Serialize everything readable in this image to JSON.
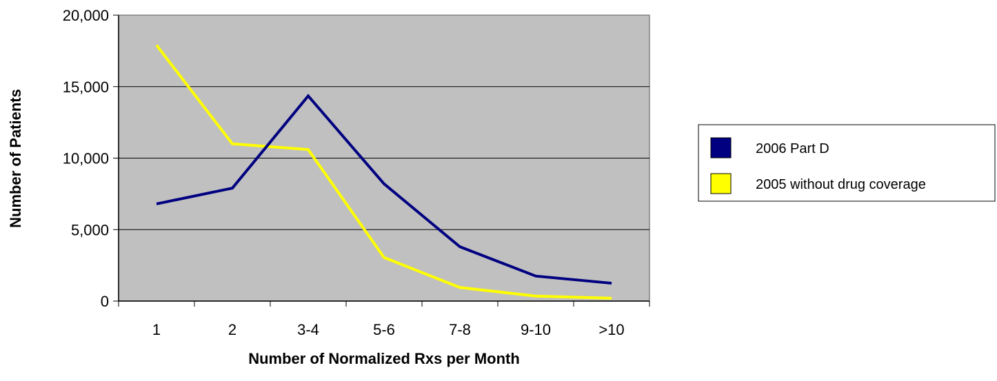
{
  "chart_data": {
    "type": "line",
    "title": "",
    "xlabel": "Number of Normalized Rxs per Month",
    "ylabel": "Number of Patients",
    "categories": [
      "1",
      "2",
      "3-4",
      "5-6",
      "7-8",
      "9-10",
      ">10"
    ],
    "ylim": [
      0,
      20000
    ],
    "yticks": [
      0,
      5000,
      10000,
      15000,
      20000
    ],
    "ytick_labels": [
      "0",
      "5,000",
      "10,000",
      "15,000",
      "20,000"
    ],
    "grid": "horizontal",
    "plot_background": "#c0c0c0",
    "legend_position": "right",
    "series": [
      {
        "name": "2006 Part D",
        "color": "#000080",
        "values": [
          6800,
          7900,
          14350,
          8200,
          3800,
          1750,
          1250
        ]
      },
      {
        "name": "2005 without drug coverage",
        "color": "#ffff00",
        "values": [
          17900,
          11000,
          10600,
          3050,
          950,
          350,
          200
        ]
      }
    ]
  }
}
